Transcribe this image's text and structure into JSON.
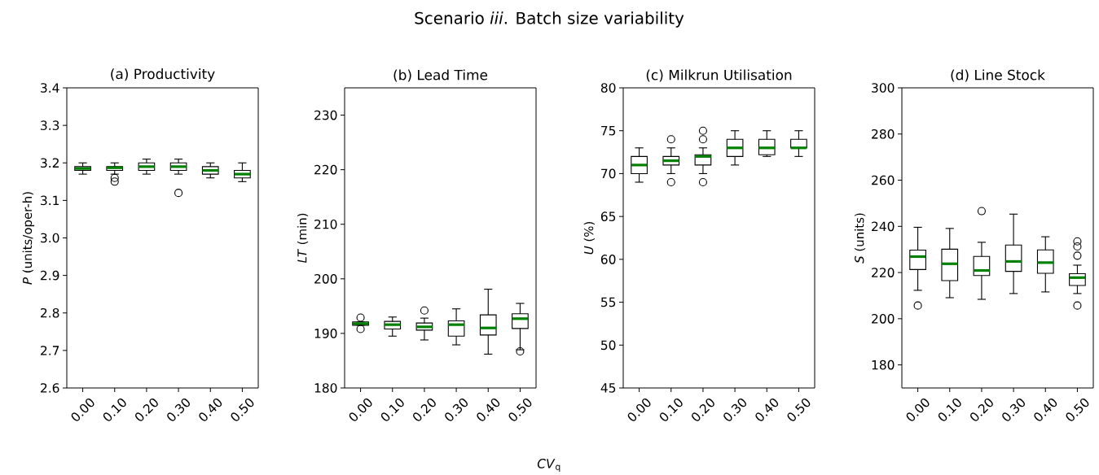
{
  "chart_data": [
    {
      "type": "box",
      "title": "(a) Productivity",
      "ylabel": "*P* (units/oper-h)",
      "annotations": [
        "Scenario *iii*.  Batch size variability"
      ],
      "color": "#000000",
      "marker": "circle",
      "categories": [
        "0.00",
        "0.10",
        "0.20",
        "0.30",
        "0.40",
        "0.50"
      ],
      "boxes": [
        {
          "low": 3.17,
          "q1": 3.18,
          "median": 3.185,
          "q3": 3.19,
          "high": 3.2
        },
        {
          "low": 3.17,
          "q1": 3.18,
          "median": 3.187,
          "q3": 3.19,
          "high": 3.2,
          "outliers": [
            3.15,
            3.16
          ]
        },
        {
          "low": 3.17,
          "q1": 3.18,
          "median": 3.19,
          "q3": 3.2,
          "high": 3.21
        },
        {
          "low": 3.17,
          "q1": 3.18,
          "median": 3.19,
          "q3": 3.2,
          "high": 3.21,
          "outliers": [
            3.12
          ]
        },
        {
          "low": 3.16,
          "q1": 3.17,
          "median": 3.18,
          "q3": 3.19,
          "high": 3.2
        },
        {
          "low": 3.15,
          "q1": 3.16,
          "median": 3.17,
          "q3": 3.18,
          "high": 3.2
        }
      ],
      "ylim": [
        2.6,
        3.4
      ],
      "yticks": [
        2.6,
        2.7,
        2.8,
        2.9,
        {
          "value": 3,
          "label": "3.0"
        },
        3.1,
        3.2,
        3.3,
        3.4
      ]
    },
    {
      "type": "box",
      "title": "(b) Lead Time",
      "ylabel": "*LT* (min)",
      "xlabel": "*CV*$_{q}$",
      "color": "#000000",
      "marker": "circle",
      "categories": [
        "0.00",
        "0.10",
        "0.20",
        "0.30",
        "0.40",
        "0.50"
      ],
      "boxes": [
        {
          "low": 191.5,
          "q1": 191.5,
          "median": 191.8,
          "q3": 192.1,
          "high": 192.1,
          "outliers": [
            192.9,
            190.8
          ]
        },
        {
          "low": 189.5,
          "q1": 190.8,
          "median": 191.6,
          "q3": 192.2,
          "high": 193.0
        },
        {
          "low": 188.8,
          "q1": 190.6,
          "median": 191.2,
          "q3": 191.9,
          "high": 192.8,
          "outliers": [
            194.2
          ]
        },
        {
          "low": 187.9,
          "q1": 189.5,
          "median": 191.6,
          "q3": 192.3,
          "high": 194.5
        },
        {
          "low": 186.2,
          "q1": 189.7,
          "median": 191.0,
          "q3": 193.4,
          "high": 198.1
        },
        {
          "low": 187.0,
          "q1": 190.9,
          "median": 192.7,
          "q3": 193.6,
          "high": 195.5,
          "outliers": [
            186.7
          ]
        }
      ],
      "ylim": [
        180,
        235
      ],
      "yticks": [
        180,
        190,
        200,
        210,
        220,
        230
      ]
    },
    {
      "type": "box",
      "title": "(c) Milkrun Utilisation",
      "ylabel": "*U* (%)",
      "color": "#000000",
      "marker": "circle",
      "categories": [
        "0.00",
        "0.10",
        "0.20",
        "0.30",
        "0.40",
        "0.50"
      ],
      "boxes": [
        {
          "low": 69,
          "q1": 70,
          "median": 71,
          "q3": 72,
          "high": 73
        },
        {
          "low": 70,
          "q1": 71,
          "median": 71.5,
          "q3": 72,
          "high": 73,
          "outliers": [
            74,
            69
          ]
        },
        {
          "low": 70,
          "q1": 71,
          "median": 72,
          "q3": 72.2,
          "high": 73,
          "outliers": [
            75,
            74,
            69
          ]
        },
        {
          "low": 71,
          "q1": 72,
          "median": 73,
          "q3": 74,
          "high": 75
        },
        {
          "low": 72,
          "q1": 72.2,
          "median": 73,
          "q3": 74,
          "high": 75
        },
        {
          "low": 72,
          "q1": 73,
          "median": 73,
          "q3": 74,
          "high": 75
        }
      ],
      "ylim": [
        45,
        80
      ],
      "yticks": [
        45,
        50,
        55,
        60,
        65,
        70,
        75,
        80
      ]
    },
    {
      "type": "box",
      "title": "(d) Line Stock",
      "ylabel": "*S* (units)",
      "color": "#000000",
      "marker": "circle",
      "categories": [
        "0.00",
        "0.10",
        "0.20",
        "0.30",
        "0.40",
        "0.50"
      ],
      "boxes": [
        {
          "low": 212.3,
          "q1": 221.3,
          "median": 226.9,
          "q3": 229.7,
          "high": 239.6,
          "outliers": [
            205.7
          ]
        },
        {
          "low": 209.1,
          "q1": 216.5,
          "median": 223.8,
          "q3": 230.1,
          "high": 239.1
        },
        {
          "low": 208.4,
          "q1": 218.7,
          "median": 220.9,
          "q3": 227.0,
          "high": 233.1,
          "outliers": [
            246.6
          ]
        },
        {
          "low": 210.9,
          "q1": 220.5,
          "median": 224.8,
          "q3": 231.9,
          "high": 245.3
        },
        {
          "low": 211.6,
          "q1": 219.7,
          "median": 224.3,
          "q3": 229.8,
          "high": 235.5
        },
        {
          "low": 210.9,
          "q1": 214.4,
          "median": 217.8,
          "q3": 219.5,
          "high": 223.2,
          "outliers": [
            233.5,
            231.3,
            227.3,
            205.7
          ]
        }
      ],
      "ylim": [
        170,
        300
      ],
      "yticks": [
        180,
        200,
        220,
        240,
        260,
        280,
        300
      ]
    }
  ]
}
